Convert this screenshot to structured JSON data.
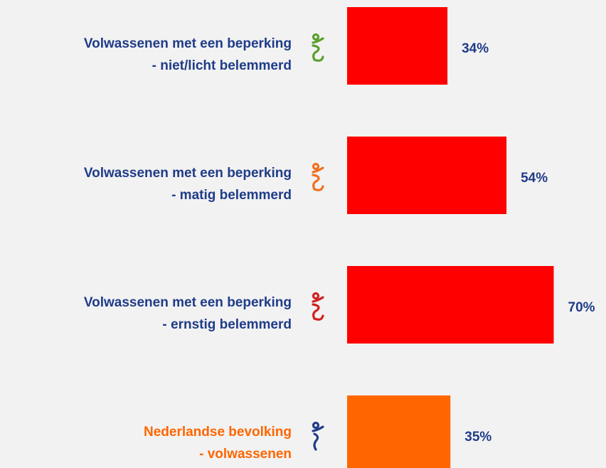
{
  "chart_data": {
    "type": "bar",
    "orientation": "horizontal",
    "categories": [
      [
        "Volwassenen met een beperking",
        "- niet/licht belemmerd"
      ],
      [
        "Volwassenen met een beperking",
        "- matig belemmerd"
      ],
      [
        "Volwassenen met een beperking",
        "- ernstig belemmerd"
      ],
      [
        "Nederlandse bevolking",
        "- volwassenen"
      ]
    ],
    "values": [
      34,
      54,
      70,
      35
    ],
    "value_labels": [
      "34%",
      "54%",
      "70%",
      "35%"
    ],
    "colors": [
      "#ff0000",
      "#ff0000",
      "#ff0000",
      "#ff6600"
    ],
    "label_colors": [
      "#1f3c88",
      "#1f3c88",
      "#1f3c88",
      "#ff6600"
    ]
  }
}
